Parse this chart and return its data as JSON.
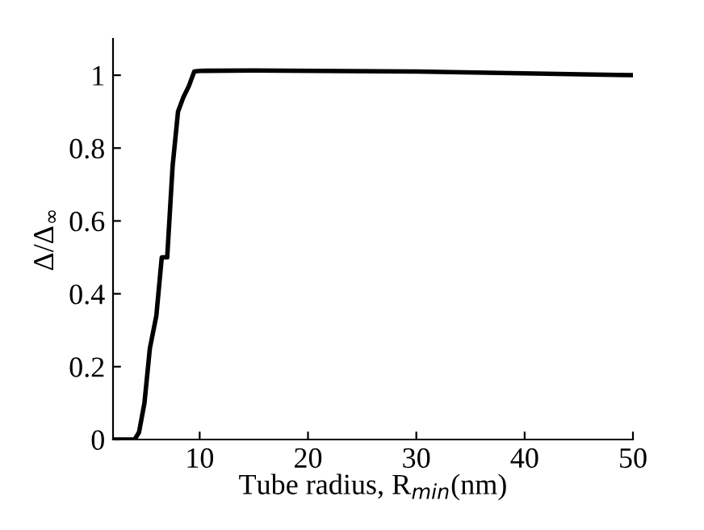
{
  "chart_data": {
    "type": "line",
    "xlabel": "Tube radius, R$_{min}$(nm)",
    "ylabel": "Δ/Δ$_{∞}$",
    "x": [
      2,
      4,
      4.4,
      4.9,
      5.4,
      6,
      6.5,
      7,
      7.5,
      8,
      8.5,
      9,
      9.5,
      10,
      15,
      30,
      50
    ],
    "series": [
      {
        "color": "#000000",
        "values": [
          0,
          0,
          0.02,
          0.1,
          0.25,
          0.34,
          0.5,
          0.5,
          0.75,
          0.9,
          0.94,
          0.97,
          1.01,
          1.012,
          1.013,
          1.01,
          1.0
        ]
      }
    ],
    "xlim": [
      2,
      50
    ],
    "ylim": [
      0,
      1.1
    ],
    "xticks": [
      10,
      20,
      30,
      40,
      50
    ],
    "yticks": [
      0,
      0.2,
      0.4,
      0.6,
      0.8,
      1
    ],
    "grid": false,
    "legend": false,
    "line_style": "solid"
  }
}
